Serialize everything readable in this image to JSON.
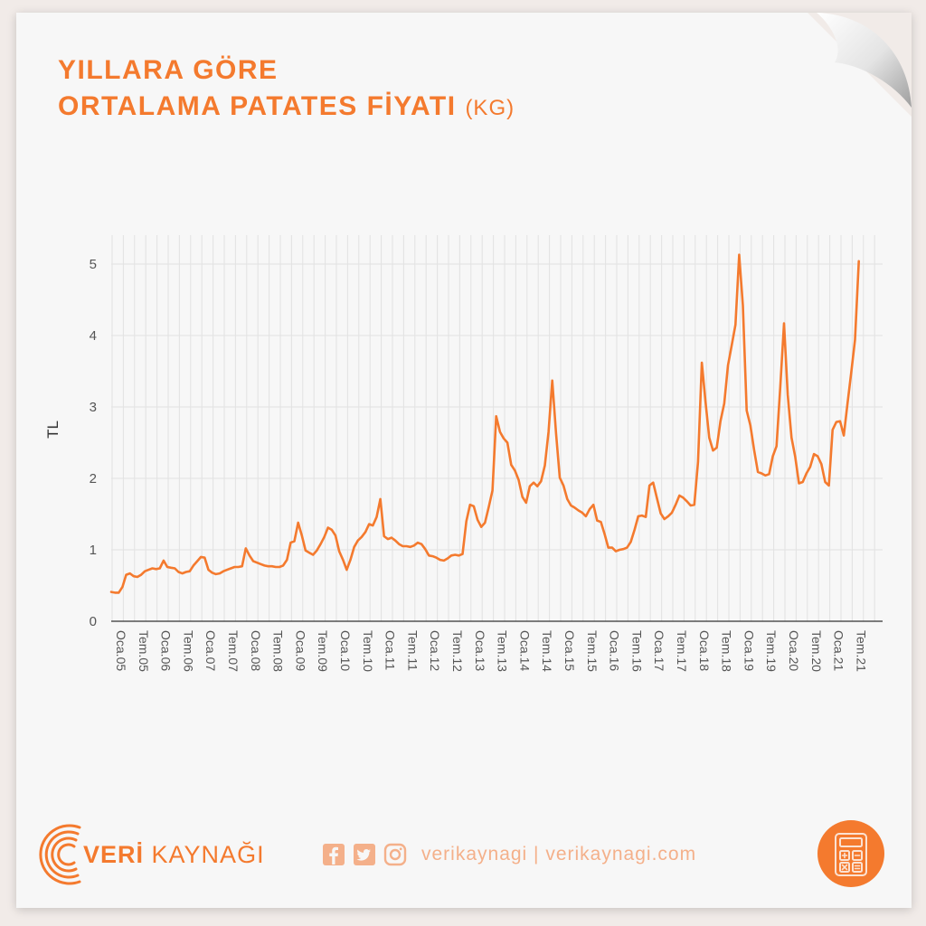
{
  "title": {
    "line1": "YILLARA GÖRE",
    "line2": "ORTALAMA PATATES FİYATI",
    "unit": "(KG)"
  },
  "footer": {
    "brand_bold": "VERİ",
    "brand_rest": " KAYNAĞI",
    "social_handle": "verikaynagi | verikaynagi.com",
    "icons": [
      "facebook-icon",
      "twitter-icon",
      "instagram-icon",
      "calculator-icon"
    ]
  },
  "colors": {
    "accent": "#f47a2e",
    "accent_light": "#f4b08a",
    "grid": "#e2e2e2",
    "axis_text": "#555555"
  },
  "chart_data": {
    "type": "line",
    "title": "",
    "xlabel": "",
    "ylabel": "TL",
    "ylim": [
      0,
      5.4
    ],
    "yticks": [
      0,
      1,
      2,
      3,
      4,
      5
    ],
    "grid": true,
    "x_tick_labels": [
      "Oca.05",
      "Tem.05",
      "Oca.06",
      "Tem.06",
      "Oca.07",
      "Tem.07",
      "Oca.08",
      "Tem.08",
      "Oca.09",
      "Tem.09",
      "Oca.10",
      "Tem.10",
      "Oca.11",
      "Tem.11",
      "Oca.12",
      "Tem.12",
      "Oca.13",
      "Tem.13",
      "Oca.14",
      "Tem.14",
      "Oca.15",
      "Tem.15",
      "Oca.16",
      "Tem.16",
      "Oca.17",
      "Tem.17",
      "Oca.18",
      "Tem.18",
      "Oca.19",
      "Tem.19",
      "Oca.20",
      "Tem.20",
      "Oca.21",
      "Tem.21"
    ],
    "series": [
      {
        "values": [
          0.41,
          0.4,
          0.4,
          0.48,
          0.65,
          0.67,
          0.63,
          0.62,
          0.65,
          0.7,
          0.72,
          0.74,
          0.73,
          0.74,
          0.85,
          0.76,
          0.75,
          0.74,
          0.69,
          0.67,
          0.69,
          0.7,
          0.78,
          0.84,
          0.9,
          0.89,
          0.72,
          0.68,
          0.66,
          0.67,
          0.7,
          0.72,
          0.74,
          0.76,
          0.76,
          0.77,
          1.02,
          0.92,
          0.84,
          0.82,
          0.8,
          0.78,
          0.77,
          0.77,
          0.76,
          0.76,
          0.78,
          0.86,
          1.1,
          1.12,
          1.38,
          1.2,
          0.99,
          0.96,
          0.93,
          0.99,
          1.08,
          1.18,
          1.31,
          1.28,
          1.2,
          0.98,
          0.86,
          0.72,
          0.86,
          1.04,
          1.13,
          1.18,
          1.25,
          1.36,
          1.34,
          1.46,
          1.71,
          1.19,
          1.15,
          1.17,
          1.13,
          1.08,
          1.05,
          1.05,
          1.04,
          1.06,
          1.1,
          1.08,
          1.01,
          0.92,
          0.91,
          0.89,
          0.86,
          0.85,
          0.88,
          0.92,
          0.93,
          0.92,
          0.94,
          1.4,
          1.63,
          1.61,
          1.42,
          1.32,
          1.38,
          1.6,
          1.83,
          2.87,
          2.65,
          2.56,
          2.5,
          2.19,
          2.11,
          1.98,
          1.74,
          1.66,
          1.89,
          1.94,
          1.89,
          1.96,
          2.18,
          2.65,
          3.37,
          2.63,
          2.01,
          1.9,
          1.71,
          1.62,
          1.59,
          1.55,
          1.52,
          1.47,
          1.57,
          1.63,
          1.41,
          1.39,
          1.22,
          1.03,
          1.03,
          0.98,
          1.0,
          1.01,
          1.03,
          1.11,
          1.28,
          1.47,
          1.48,
          1.46,
          1.9,
          1.94,
          1.72,
          1.51,
          1.43,
          1.47,
          1.52,
          1.63,
          1.76,
          1.73,
          1.68,
          1.62,
          1.63,
          2.23,
          3.62,
          3.07,
          2.57,
          2.39,
          2.43,
          2.8,
          3.05,
          3.58,
          3.86,
          4.15,
          5.13,
          4.42,
          2.95,
          2.74,
          2.4,
          2.09,
          2.07,
          2.04,
          2.06,
          2.31,
          2.45,
          3.29,
          4.17,
          3.17,
          2.57,
          2.3,
          1.93,
          1.95,
          2.07,
          2.16,
          2.34,
          2.31,
          2.2,
          1.95,
          1.9,
          2.68,
          2.79,
          2.8,
          2.6,
          3.06,
          3.49,
          3.94,
          5.04
        ]
      }
    ]
  }
}
